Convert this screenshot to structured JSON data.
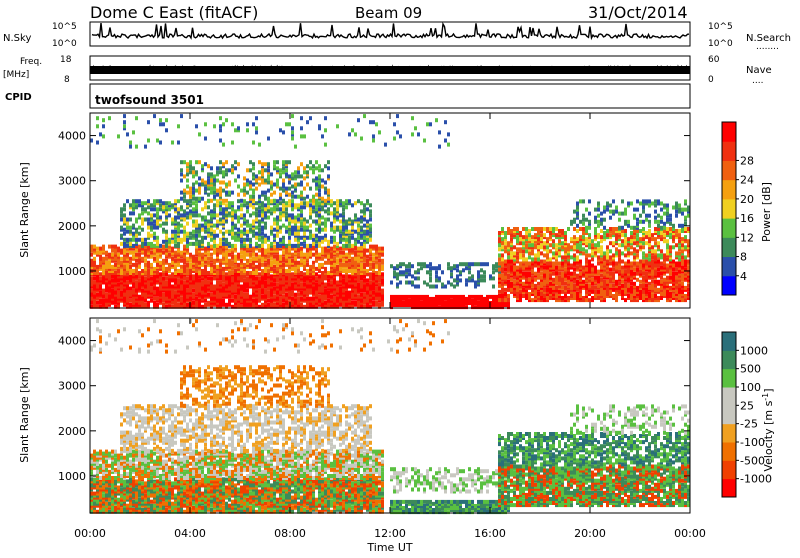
{
  "header": {
    "station": "Dome C East (fitACF)",
    "beam": "Beam 09",
    "date": "31/Oct/2014"
  },
  "strip_panels": {
    "nsky": {
      "label": "N.Sky",
      "tick_top": "10^5",
      "tick_bottom": "10^0",
      "right_label": "N.Search",
      "right_label_line": "........",
      "right_tick_top": "10^5",
      "right_tick_bottom": "10^0"
    },
    "freq": {
      "label_line1": "Freq.",
      "label_line2": "[MHz]",
      "tick_top": "18",
      "tick_bottom": "8",
      "right_label": "Nave",
      "right_label_line": "....",
      "right_tick_top": "60",
      "right_tick_bottom": "0"
    },
    "cpid": {
      "label": "CPID",
      "program": "twofsound 3501"
    }
  },
  "colors": {
    "power_scale": [
      "#0000ff",
      "#2a4faa",
      "#3c8a5a",
      "#5ac040",
      "#f0d020",
      "#f5a010",
      "#f06010",
      "#f03010",
      "#ff0000"
    ],
    "velocity_scale": [
      "#ff0000",
      "#f04000",
      "#f07000",
      "#f0a020",
      "#c8c8c0",
      "#c8c8c0",
      "#5ac040",
      "#3c8a5a",
      "#2a6f7a",
      "#1f3fbf"
    ],
    "axis": "#000000",
    "background": "#ffffff"
  },
  "chart_data": [
    {
      "type": "heatmap",
      "title": "",
      "xlabel": "",
      "ylabel": "Slant Range [km]",
      "xlim": [
        "00:00",
        "00:00"
      ],
      "ylim": [
        180,
        4500
      ],
      "y_ticks": [
        1000,
        2000,
        3000,
        4000
      ],
      "colorbar": {
        "label": "Power [dB]",
        "ticks": [
          "4",
          "8",
          "12",
          "16",
          "20",
          "24",
          "28"
        ]
      },
      "grid": false
    },
    {
      "type": "heatmap",
      "title": "",
      "xlabel": "Time UT",
      "ylabel": "Slant Range [km]",
      "xlim": [
        "00:00",
        "00:00"
      ],
      "x_ticks": [
        "00:00",
        "04:00",
        "08:00",
        "12:00",
        "16:00",
        "20:00",
        "00:00"
      ],
      "ylim": [
        180,
        4500
      ],
      "y_ticks": [
        1000,
        2000,
        3000,
        4000
      ],
      "colorbar": {
        "label": "Velocity [m s^-1]",
        "label_main": "Velocity [m s",
        "label_exp": "-1",
        "label_end": "]",
        "ticks": [
          "-1000",
          "-500",
          "-100",
          "-25",
          "25",
          "100",
          "500",
          "1000"
        ]
      },
      "grid": false
    }
  ]
}
